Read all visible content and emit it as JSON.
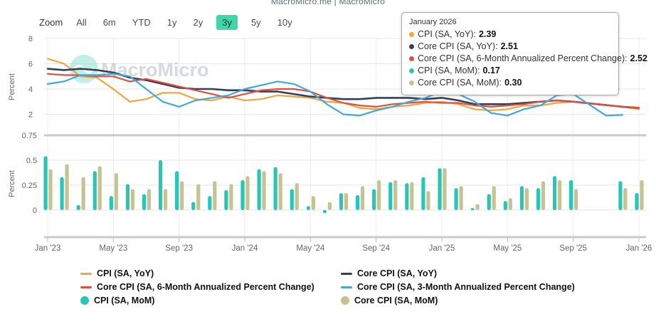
{
  "header": {
    "title": "MacroMicro.me | MacroMicro"
  },
  "toolbar": {
    "label": "Zoom",
    "ranges": [
      "All",
      "6m",
      "YTD",
      "1y",
      "2y",
      "3y",
      "5y",
      "10y"
    ],
    "selected": "3y"
  },
  "watermark": {
    "text": "MacroMicro"
  },
  "colors": {
    "cpi_yoy": "#f2a43e",
    "core_yoy": "#363f58",
    "core_6m": "#dd5143",
    "core_3m": "#41a9da",
    "cpi_mom": "#29c5b6",
    "core_mom": "#c5c392",
    "selected_range_bg": "#41d6a7",
    "gridline": "#e6e6e6",
    "axis_border": "#c9c9c9"
  },
  "tooltip": {
    "title": "January 2026",
    "rows": [
      {
        "color": "#f2a43e",
        "label": "CPI (SA, YoY):",
        "value": "2.39"
      },
      {
        "color": "#363f58",
        "label": "Core CPI (SA, YoY):",
        "value": "2.51"
      },
      {
        "color": "#dd5143",
        "label": "Core CPI (SA, 6-Month Annualized Percent Change):",
        "value": "2.52"
      },
      {
        "color": "#29c5b6",
        "label": "CPI (SA, MoM):",
        "value": "0.17"
      },
      {
        "color": "#c5c392",
        "label": "Core CPI (SA, MoM):",
        "value": "0.30"
      }
    ]
  },
  "legend": [
    {
      "type": "line",
      "color": "#f2a43e",
      "label": "CPI (SA, YoY)"
    },
    {
      "type": "line",
      "color": "#363f58",
      "label": "Core CPI (SA, YoY)"
    },
    {
      "type": "line",
      "color": "#dd5143",
      "label": "Core CPI (SA, 6-Month Annualized Percent Change)"
    },
    {
      "type": "line",
      "color": "#41a9da",
      "label": "Core CPI (SA, 3-Month Annualized Percent Change)"
    },
    {
      "type": "dot",
      "color": "#29c5b6",
      "label": "CPI (SA, MoM)"
    },
    {
      "type": "dot",
      "color": "#c5c392",
      "label": "Core CPI (SA, MoM)"
    }
  ],
  "chart_data": {
    "type": "line+bar",
    "months": [
      "Jan 2023",
      "Feb 2023",
      "Mar 2023",
      "Apr 2023",
      "May 2023",
      "Jun 2023",
      "Jul 2023",
      "Aug 2023",
      "Sep 2023",
      "Oct 2023",
      "Nov 2023",
      "Dec 2023",
      "Jan 2024",
      "Feb 2024",
      "Mar 2024",
      "Apr 2024",
      "May 2024",
      "Jun 2024",
      "Jul 2024",
      "Aug 2024",
      "Sep 2024",
      "Oct 2024",
      "Nov 2024",
      "Dec 2024",
      "Jan 2025",
      "Feb 2025",
      "Mar 2025",
      "Apr 2025",
      "May 2025",
      "Jun 2025",
      "Jul 2025",
      "Aug 2025",
      "Sep 2025",
      "Oct 2025",
      "Nov 2025",
      "Dec 2025",
      "Jan 2026"
    ],
    "x_tick_labels": [
      "Jan '23",
      "May '23",
      "Sep '23",
      "Jan '24",
      "May '24",
      "Sep '24",
      "Jan '25",
      "May '25",
      "Sep '25",
      "Jan '26"
    ],
    "x_tick_indices": [
      0,
      4,
      8,
      12,
      16,
      20,
      24,
      28,
      32,
      36
    ],
    "top_panel": {
      "ylabel": "Percent",
      "yticks": [
        8,
        6,
        4,
        2
      ],
      "ylim": [
        0.75,
        8
      ],
      "grid": true,
      "series": [
        {
          "name": "CPI (SA, YoY)",
          "color": "#f2a43e",
          "values": [
            6.4,
            6.0,
            5.0,
            4.9,
            4.0,
            3.0,
            3.2,
            3.7,
            3.7,
            3.2,
            3.1,
            3.4,
            3.1,
            3.2,
            3.5,
            3.4,
            3.3,
            3.0,
            2.9,
            2.5,
            2.4,
            2.6,
            2.7,
            2.9,
            3.0,
            2.8,
            2.4,
            2.3,
            2.4,
            2.7,
            2.7,
            2.9,
            3.0,
            null,
            null,
            2.6,
            2.39
          ]
        },
        {
          "name": "Core CPI (SA, YoY)",
          "color": "#363f58",
          "values": [
            5.6,
            5.5,
            5.6,
            5.5,
            5.3,
            4.9,
            4.7,
            4.4,
            4.1,
            4.0,
            4.0,
            3.9,
            3.9,
            3.8,
            3.8,
            3.6,
            3.4,
            3.3,
            3.2,
            3.2,
            3.3,
            3.3,
            3.3,
            3.2,
            3.3,
            3.1,
            2.8,
            2.8,
            2.8,
            2.9,
            3.0,
            3.1,
            3.0,
            null,
            null,
            2.6,
            2.51
          ]
        },
        {
          "name": "Core CPI (SA, 6-Month Annualized Percent Change)",
          "color": "#dd5143",
          "values": [
            5.2,
            5.1,
            5.1,
            5.0,
            5.0,
            4.6,
            4.8,
            4.5,
            4.2,
            3.9,
            3.6,
            3.3,
            3.6,
            3.9,
            4.0,
            4.0,
            3.8,
            3.3,
            2.9,
            2.7,
            2.6,
            2.8,
            2.9,
            3.0,
            2.9,
            2.9,
            2.7,
            2.6,
            2.7,
            2.8,
            3.0,
            3.1,
            3.0,
            null,
            null,
            2.6,
            2.52
          ]
        },
        {
          "name": "Core CPI (SA, 3-Month Annualized Percent Change)",
          "color": "#41a9da",
          "values": [
            4.4,
            4.6,
            5.1,
            5.1,
            5.2,
            5.0,
            4.0,
            3.0,
            2.6,
            3.1,
            3.3,
            3.5,
            4.0,
            4.3,
            4.6,
            4.4,
            3.8,
            2.8,
            2.0,
            1.9,
            2.3,
            2.6,
            3.0,
            3.3,
            3.8,
            3.6,
            3.0,
            2.1,
            1.9,
            2.4,
            2.7,
            3.5,
            3.6,
            null,
            1.9,
            1.95,
            null
          ]
        }
      ]
    },
    "bottom_panel": {
      "ylabel": "Percent",
      "yticks": [
        0.75,
        0.5,
        0.25,
        0
      ],
      "ylim": [
        -0.27,
        0.75
      ],
      "grid": true,
      "series": [
        {
          "name": "CPI (SA, MoM)",
          "color": "#29c5b6",
          "values": [
            0.54,
            0.33,
            0.05,
            0.39,
            0.14,
            0.26,
            0.16,
            0.5,
            0.39,
            0.08,
            0.14,
            0.2,
            0.3,
            0.41,
            0.43,
            0.21,
            0.04,
            -0.03,
            0.17,
            0.15,
            0.21,
            0.28,
            0.27,
            0.33,
            0.42,
            0.22,
            0.02,
            0.16,
            0.09,
            0.24,
            0.22,
            0.34,
            0.3,
            null,
            null,
            0.29,
            0.17
          ]
        },
        {
          "name": "Core CPI (SA, MoM)",
          "color": "#c5c392",
          "values": [
            0.41,
            0.46,
            0.33,
            0.44,
            0.37,
            0.21,
            0.21,
            0.21,
            0.29,
            0.26,
            0.29,
            0.26,
            0.34,
            0.39,
            0.37,
            0.27,
            0.14,
            0.08,
            0.17,
            0.24,
            0.3,
            0.3,
            0.28,
            0.19,
            0.42,
            0.24,
            0.06,
            0.24,
            0.12,
            0.22,
            0.29,
            0.3,
            0.21,
            null,
            null,
            0.22,
            0.3
          ]
        }
      ]
    }
  }
}
